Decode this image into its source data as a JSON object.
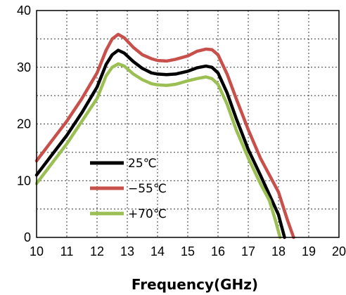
{
  "chart_data": {
    "type": "line",
    "title": "",
    "xlabel": "Frequency(GHz)",
    "ylabel": "",
    "xlim": [
      10,
      20
    ],
    "ylim": [
      0,
      40
    ],
    "x_ticks": [
      "10",
      "11",
      "12",
      "13",
      "14",
      "15",
      "16",
      "17",
      "18",
      "19",
      "20"
    ],
    "y_ticks": [
      "0",
      "10",
      "20",
      "30",
      "40"
    ],
    "grid": true,
    "legend_position": "left-center",
    "series": [
      {
        "name": "25℃",
        "color": "#000000",
        "x": [
          10.0,
          10.5,
          11.0,
          11.5,
          12.0,
          12.3,
          12.5,
          12.7,
          12.9,
          13.2,
          13.5,
          13.8,
          14.0,
          14.3,
          14.6,
          15.0,
          15.3,
          15.6,
          15.8,
          16.0,
          16.3,
          16.6,
          17.0,
          17.4,
          17.7,
          18.0,
          18.1,
          18.2
        ],
        "y": [
          11.0,
          14.5,
          18.0,
          22.0,
          26.5,
          30.5,
          32.2,
          33.0,
          32.5,
          31.0,
          29.8,
          29.0,
          28.8,
          28.7,
          28.8,
          29.3,
          29.9,
          30.2,
          30.0,
          29.0,
          25.5,
          21.0,
          15.5,
          11.0,
          7.5,
          4.0,
          2.0,
          0.0
        ]
      },
      {
        "name": "−55℃",
        "color": "#c8504a",
        "x": [
          10.0,
          10.5,
          11.0,
          11.5,
          12.0,
          12.3,
          12.5,
          12.7,
          12.9,
          13.2,
          13.5,
          13.8,
          14.0,
          14.3,
          14.6,
          15.0,
          15.3,
          15.6,
          15.8,
          16.0,
          16.3,
          16.6,
          17.0,
          17.4,
          17.7,
          18.0,
          18.3,
          18.5
        ],
        "y": [
          13.5,
          17.0,
          20.5,
          24.5,
          29.0,
          33.0,
          35.0,
          35.8,
          35.2,
          33.5,
          32.2,
          31.5,
          31.2,
          31.1,
          31.4,
          32.0,
          32.8,
          33.2,
          33.1,
          32.2,
          28.8,
          24.5,
          19.0,
          14.0,
          11.0,
          8.0,
          3.0,
          0.0
        ]
      },
      {
        "name": "+70℃",
        "color": "#9bbf52",
        "x": [
          10.0,
          10.5,
          11.0,
          11.5,
          12.0,
          12.3,
          12.5,
          12.7,
          12.9,
          13.2,
          13.5,
          13.8,
          14.0,
          14.3,
          14.6,
          15.0,
          15.3,
          15.6,
          15.8,
          16.0,
          16.3,
          16.6,
          17.0,
          17.4,
          17.7,
          17.9,
          18.05
        ],
        "y": [
          9.5,
          13.0,
          16.5,
          20.5,
          24.5,
          28.5,
          30.0,
          30.6,
          30.2,
          28.8,
          27.8,
          27.1,
          26.9,
          26.8,
          27.0,
          27.6,
          28.0,
          28.3,
          28.0,
          27.0,
          23.5,
          19.0,
          14.0,
          9.5,
          6.5,
          3.0,
          0.0
        ]
      }
    ]
  }
}
